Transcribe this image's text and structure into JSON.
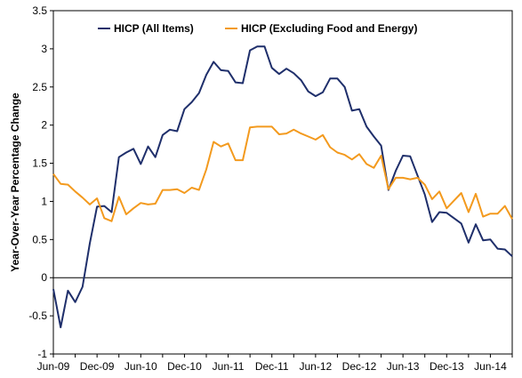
{
  "chart_data": {
    "type": "line",
    "title": "",
    "xlabel": "",
    "ylabel": "Year-Over-Year Percentage Change",
    "ylim": [
      -1,
      3.5
    ],
    "yticks": [
      "-1",
      "-0.5",
      "0",
      "0.5",
      "1",
      "1.5",
      "2",
      "2.5",
      "3",
      "3.5"
    ],
    "xticks": [
      "Jun-09",
      "Dec-09",
      "Jun-10",
      "Dec-10",
      "Jun-11",
      "Dec-11",
      "Jun-12",
      "Dec-12",
      "Jun-13",
      "Dec-13",
      "Jun-14"
    ],
    "x_range": [
      "Jun-09",
      "Sep-14"
    ],
    "grid": false,
    "legend_position": "top",
    "series": [
      {
        "name": "HICP (All Items)",
        "color": "#1f2f6b",
        "values": [
          -0.15,
          -0.65,
          -0.17,
          -0.32,
          -0.12,
          0.45,
          0.93,
          0.94,
          0.86,
          1.58,
          1.64,
          1.69,
          1.49,
          1.72,
          1.58,
          1.87,
          1.94,
          1.92,
          2.21,
          2.3,
          2.42,
          2.66,
          2.83,
          2.72,
          2.71,
          2.56,
          2.55,
          2.98,
          3.03,
          3.03,
          2.75,
          2.67,
          2.74,
          2.68,
          2.59,
          2.44,
          2.38,
          2.43,
          2.61,
          2.61,
          2.5,
          2.19,
          2.21,
          1.98,
          1.85,
          1.73,
          1.15,
          1.4,
          1.6,
          1.59,
          1.34,
          1.09,
          0.73,
          0.86,
          0.85,
          0.78,
          0.71,
          0.46,
          0.7,
          0.49,
          0.5,
          0.38,
          0.37,
          0.28
        ]
      },
      {
        "name": "HICP (Excluding Food and Energy)",
        "color": "#f39a1e",
        "values": [
          1.36,
          1.23,
          1.22,
          1.13,
          1.05,
          0.96,
          1.04,
          0.78,
          0.74,
          1.06,
          0.83,
          0.91,
          0.98,
          0.96,
          0.97,
          1.15,
          1.15,
          1.16,
          1.11,
          1.18,
          1.15,
          1.42,
          1.78,
          1.72,
          1.76,
          1.54,
          1.54,
          1.97,
          1.98,
          1.98,
          1.98,
          1.88,
          1.89,
          1.94,
          1.89,
          1.85,
          1.81,
          1.87,
          1.71,
          1.64,
          1.61,
          1.55,
          1.62,
          1.49,
          1.44,
          1.6,
          1.16,
          1.31,
          1.31,
          1.29,
          1.31,
          1.22,
          1.03,
          1.13,
          0.91,
          1.01,
          1.11,
          0.86,
          1.1,
          0.8,
          0.84,
          0.84,
          0.94,
          0.77
        ]
      }
    ]
  }
}
